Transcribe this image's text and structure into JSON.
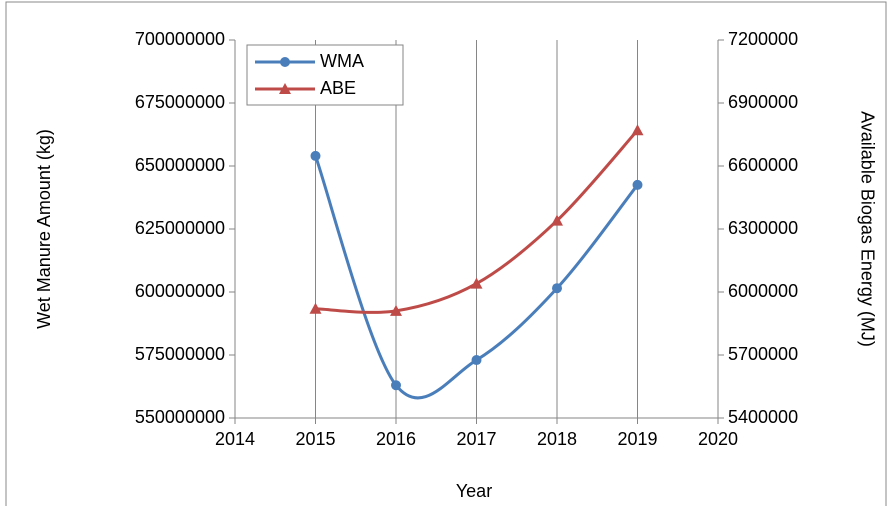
{
  "chart_data": {
    "type": "line",
    "xlabel": "Year",
    "ylabel": "Wet Manure Amount (kg)",
    "y2label": "Available Biogas Energy (MJ)",
    "x": [
      2015,
      2016,
      2017,
      2018,
      2019
    ],
    "series": [
      {
        "name": "WMA",
        "color": "#4a7ebb",
        "marker": "circle",
        "values": [
          654000000,
          563000000,
          573000000,
          601500000,
          642500000
        ]
      },
      {
        "name": "ABE",
        "color": "#be4b48",
        "marker": "triangle",
        "axis": "y2",
        "values": [
          5920000,
          5910000,
          6040000,
          6340000,
          6770000
        ]
      }
    ],
    "xlim": [
      2014,
      2020
    ],
    "xticks": [
      2014,
      2015,
      2016,
      2017,
      2018,
      2019,
      2020
    ],
    "ylim": [
      550000000,
      700000000
    ],
    "yticks": [
      550000000,
      575000000,
      600000000,
      625000000,
      650000000,
      675000000,
      700000000
    ],
    "y2lim": [
      5400000,
      7200000
    ],
    "y2ticks": [
      5400000,
      5700000,
      6000000,
      6300000,
      6600000,
      6900000,
      7200000
    ],
    "grid": "vertical",
    "smooth": true,
    "legend": "upper left"
  }
}
